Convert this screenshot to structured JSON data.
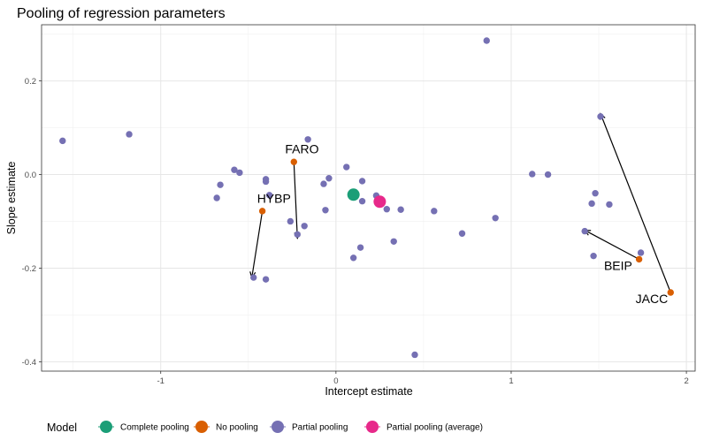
{
  "chart_data": {
    "type": "scatter",
    "title": "Pooling of regression parameters",
    "xlabel": "Intercept estimate",
    "ylabel": "Slope estimate",
    "xlim": [
      -1.68,
      2.05
    ],
    "ylim": [
      -0.42,
      0.32
    ],
    "x_ticks": [
      -1,
      0,
      1,
      2
    ],
    "y_ticks": [
      -0.4,
      -0.2,
      0.0,
      0.2
    ],
    "x_tick_labels": [
      "-1",
      "0",
      "1",
      "2"
    ],
    "y_tick_labels": [
      "-0.4",
      "-0.2",
      "0.0",
      "0.2"
    ],
    "grid": true,
    "legend": {
      "title": "Model",
      "position": "bottom",
      "entries": [
        {
          "label": "Complete pooling",
          "color": "#1b9e77"
        },
        {
          "label": "No pooling",
          "color": "#d95f02"
        },
        {
          "label": "Partial pooling",
          "color": "#7570b3"
        },
        {
          "label": "Partial pooling (average)",
          "color": "#e7298a"
        }
      ]
    },
    "series": [
      {
        "name": "Partial pooling",
        "color": "#7570b3",
        "points": [
          [
            -1.56,
            0.072
          ],
          [
            -1.18,
            0.086
          ],
          [
            -0.58,
            0.01
          ],
          [
            -0.55,
            0.004
          ],
          [
            -0.66,
            -0.022
          ],
          [
            -0.68,
            -0.05
          ],
          [
            -0.4,
            -0.01
          ],
          [
            -0.4,
            -0.015
          ],
          [
            -0.38,
            -0.044
          ],
          [
            -0.16,
            0.075
          ],
          [
            -0.07,
            -0.02
          ],
          [
            -0.04,
            -0.008
          ],
          [
            -0.26,
            -0.1
          ],
          [
            -0.22,
            -0.128
          ],
          [
            -0.18,
            -0.11
          ],
          [
            -0.06,
            -0.076
          ],
          [
            0.06,
            0.016
          ],
          [
            0.15,
            -0.014
          ],
          [
            0.15,
            -0.057
          ],
          [
            0.23,
            -0.045
          ],
          [
            0.29,
            -0.074
          ],
          [
            0.37,
            -0.075
          ],
          [
            0.56,
            -0.078
          ],
          [
            0.14,
            -0.156
          ],
          [
            0.1,
            -0.178
          ],
          [
            0.33,
            -0.143
          ],
          [
            0.72,
            -0.126
          ],
          [
            0.91,
            -0.093
          ],
          [
            -0.47,
            -0.22
          ],
          [
            -0.4,
            -0.224
          ],
          [
            0.45,
            -0.385
          ],
          [
            0.86,
            0.286
          ],
          [
            1.12,
            0.001
          ],
          [
            1.21,
            0.0
          ],
          [
            1.48,
            -0.04
          ],
          [
            1.46,
            -0.062
          ],
          [
            1.56,
            -0.064
          ],
          [
            1.42,
            -0.121
          ],
          [
            1.47,
            -0.174
          ],
          [
            1.74,
            -0.167
          ],
          [
            1.51,
            0.124
          ]
        ]
      },
      {
        "name": "No pooling",
        "color": "#d95f02",
        "points": [
          [
            -0.42,
            -0.078
          ],
          [
            -0.24,
            0.027
          ],
          [
            1.73,
            -0.181
          ],
          [
            1.91,
            -0.252
          ]
        ]
      },
      {
        "name": "Complete pooling",
        "color": "#1b9e77",
        "points": [
          [
            0.1,
            -0.043
          ]
        ]
      },
      {
        "name": "Partial pooling (average)",
        "color": "#e7298a",
        "points": [
          [
            0.25,
            -0.058
          ]
        ]
      }
    ],
    "arrows": [
      {
        "from": [
          -0.42,
          -0.078
        ],
        "to": [
          -0.48,
          -0.22
        ]
      },
      {
        "from": [
          -0.24,
          0.027
        ],
        "to": [
          -0.22,
          -0.136
        ]
      },
      {
        "from": [
          1.73,
          -0.181
        ],
        "to": [
          1.42,
          -0.119
        ]
      },
      {
        "from": [
          1.91,
          -0.252
        ],
        "to": [
          1.51,
          0.13
        ]
      }
    ],
    "annotations": [
      {
        "text": "HYBP",
        "x": -0.45,
        "y": -0.06
      },
      {
        "text": "FARO",
        "x": -0.29,
        "y": 0.045
      },
      {
        "text": "BEIP",
        "x": 1.53,
        "y": -0.204
      },
      {
        "text": "JACC",
        "x": 1.71,
        "y": -0.275
      }
    ]
  }
}
